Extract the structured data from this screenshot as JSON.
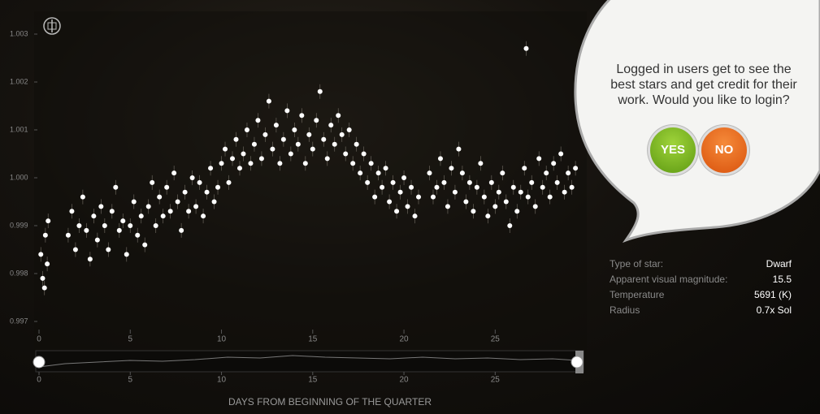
{
  "chart_data": {
    "type": "scatter",
    "x_label": "DAYS FROM BEGINNING OF THE QUARTER",
    "xlim": [
      0,
      29.84
    ],
    "xticks": [
      0,
      5,
      10,
      15,
      20,
      25
    ],
    "ylim": [
      0.996847,
      1.003373
    ],
    "yticks": [
      1.003,
      1.002,
      1.001,
      {
        "value": 1,
        "label": "1.000"
      },
      0.999,
      0.998,
      0.997
    ],
    "color": "#ffffff",
    "x": [
      0.1,
      0.2,
      0.3,
      0.35,
      0.45,
      0.5,
      1.6,
      1.8,
      2.0,
      2.2,
      2.4,
      2.6,
      2.8,
      3.0,
      3.2,
      3.4,
      3.6,
      3.8,
      4.0,
      4.2,
      4.4,
      4.6,
      4.8,
      5.0,
      5.2,
      5.4,
      5.6,
      5.8,
      6.0,
      6.2,
      6.4,
      6.6,
      6.8,
      7.0,
      7.2,
      7.4,
      7.6,
      7.8,
      8.0,
      8.2,
      8.4,
      8.6,
      8.8,
      9.0,
      9.2,
      9.4,
      9.6,
      9.8,
      10.0,
      10.2,
      10.4,
      10.6,
      10.8,
      11.0,
      11.2,
      11.4,
      11.6,
      11.8,
      12.0,
      12.2,
      12.4,
      12.6,
      12.8,
      13.0,
      13.2,
      13.4,
      13.6,
      13.8,
      14.0,
      14.2,
      14.4,
      14.6,
      14.8,
      15.0,
      15.2,
      15.4,
      15.6,
      15.8,
      16.0,
      16.2,
      16.4,
      16.6,
      16.8,
      17.0,
      17.2,
      17.4,
      17.6,
      17.8,
      18.0,
      18.2,
      18.4,
      18.6,
      18.8,
      19.0,
      19.2,
      19.4,
      19.6,
      19.8,
      20.0,
      20.2,
      20.4,
      20.6,
      20.8,
      21.4,
      21.6,
      21.8,
      22.0,
      22.2,
      22.4,
      22.6,
      22.8,
      23.0,
      23.2,
      23.4,
      23.6,
      23.8,
      24.0,
      24.2,
      24.4,
      24.6,
      24.8,
      25.0,
      25.2,
      25.4,
      25.6,
      25.8,
      26.0,
      26.2,
      26.4,
      26.6,
      26.7,
      26.8,
      27.0,
      27.2,
      27.4,
      27.6,
      27.8,
      28.0,
      28.2,
      28.4,
      28.6,
      28.8,
      29.0,
      29.2,
      29.4
    ],
    "y": [
      0.9984,
      0.9979,
      0.9977,
      0.9988,
      0.9982,
      0.9991,
      0.9988,
      0.9993,
      0.9985,
      0.999,
      0.9996,
      0.9989,
      0.9983,
      0.9992,
      0.9987,
      0.9994,
      0.999,
      0.9985,
      0.9993,
      0.9998,
      0.9989,
      0.9991,
      0.9984,
      0.999,
      0.9995,
      0.9988,
      0.9992,
      0.9986,
      0.9994,
      0.9999,
      0.999,
      0.9996,
      0.9992,
      0.9998,
      0.9993,
      1.0001,
      0.9995,
      0.9989,
      0.9997,
      0.9993,
      1.0,
      0.9994,
      0.9999,
      0.9992,
      0.9997,
      1.0002,
      0.9995,
      0.9998,
      1.0003,
      1.0006,
      0.9999,
      1.0004,
      1.0008,
      1.0002,
      1.0005,
      1.001,
      1.0003,
      1.0007,
      1.0012,
      1.0004,
      1.0009,
      1.0016,
      1.0006,
      1.0011,
      1.0003,
      1.0008,
      1.0014,
      1.0005,
      1.001,
      1.0007,
      1.0013,
      1.0003,
      1.0009,
      1.0006,
      1.0012,
      1.0018,
      1.0008,
      1.0004,
      1.0011,
      1.0007,
      1.0013,
      1.0009,
      1.0005,
      1.001,
      1.0003,
      1.0007,
      1.0001,
      1.0005,
      0.9999,
      1.0003,
      0.9996,
      1.0001,
      0.9998,
      1.0002,
      0.9995,
      0.9999,
      0.9993,
      0.9997,
      1.0,
      0.9994,
      0.9998,
      0.9992,
      0.9996,
      1.0001,
      0.9996,
      0.9998,
      1.0004,
      0.9999,
      0.9994,
      1.0002,
      0.9997,
      1.0006,
      1.0001,
      0.9995,
      0.9999,
      0.9993,
      0.9998,
      1.0003,
      0.9996,
      0.9992,
      0.9999,
      0.9994,
      0.9997,
      1.0001,
      0.9995,
      0.999,
      0.9998,
      0.9993,
      0.9997,
      1.0002,
      1.0027,
      0.9996,
      0.9999,
      0.9994,
      1.0004,
      0.9998,
      1.0001,
      0.9996,
      1.0003,
      0.9999,
      1.0005,
      0.9997,
      1.0001,
      0.9998,
      1.0002
    ]
  },
  "popup": {
    "message": "Logged in users get to see the best stars and get credit for their work. Would you like to login?",
    "yes": "YES",
    "no": "NO"
  },
  "star_info": [
    {
      "label": "Type of star:",
      "value": "Dwarf"
    },
    {
      "label": "Apparent visual magnitude:",
      "value": "15.5"
    },
    {
      "label": "Temperature",
      "value": "5691 (K)"
    },
    {
      "label": "Radius",
      "value": "0.7x Sol"
    }
  ]
}
